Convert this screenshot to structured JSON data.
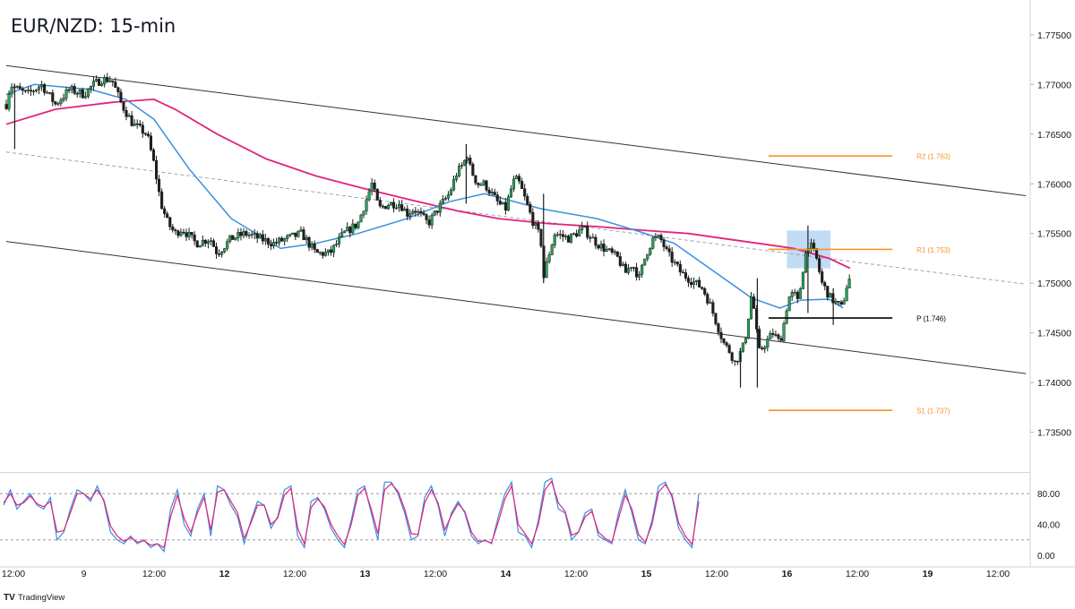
{
  "chart_data": {
    "type": "candlestick",
    "title": "EUR/NZD: 15-min",
    "brand": "TradingView",
    "price_axis": {
      "range": [
        1.731,
        1.7785
      ],
      "ticks": [
        1.775,
        1.77,
        1.765,
        1.76,
        1.755,
        1.75,
        1.745,
        1.74,
        1.735
      ],
      "tick_labels": [
        "1.77500",
        "1.77000",
        "1.76500",
        "1.76000",
        "1.75500",
        "1.75000",
        "1.74500",
        "1.74000",
        "1.73500"
      ]
    },
    "time_axis": {
      "labels": [
        "12:00",
        "9",
        "12:00",
        "12",
        "12:00",
        "13",
        "12:00",
        "14",
        "12:00",
        "15",
        "12:00",
        "16",
        "12:00",
        "19",
        "12:00"
      ],
      "bold_labels": [
        "12",
        "13",
        "14",
        "15",
        "16",
        "19"
      ]
    },
    "pivot_levels": [
      {
        "label": "R2 (1.763)",
        "value": 1.7628,
        "color": "#f5952a",
        "start_t": 5.42,
        "end_t": 6.3
      },
      {
        "label": "R1 (1.753)",
        "value": 1.7534,
        "color": "#f5952a",
        "start_t": 5.42,
        "end_t": 6.3
      },
      {
        "label": "P (1.746)",
        "value": 1.7465,
        "color": "#000000",
        "start_t": 5.42,
        "end_t": 6.3
      },
      {
        "label": "S1 (1.737)",
        "value": 1.7372,
        "color": "#f5952a",
        "start_t": 5.42,
        "end_t": 6.3
      }
    ],
    "trendlines": [
      {
        "name": "upper-channel",
        "points": [
          [
            0,
            1.7719
          ],
          [
            7.25,
            1.7588
          ]
        ],
        "color": "#333333",
        "style": "solid"
      },
      {
        "name": "lower-channel",
        "points": [
          [
            0,
            1.7542
          ],
          [
            7.25,
            1.7409
          ]
        ],
        "color": "#333333",
        "style": "solid"
      },
      {
        "name": "mid-channel",
        "points": [
          [
            0,
            1.7632
          ],
          [
            7.25,
            1.7499
          ]
        ],
        "color": "#9a9a9a",
        "style": "dashed"
      }
    ],
    "highlight_zone": {
      "t_range": [
        5.55,
        5.86
      ],
      "price_range": [
        1.7515,
        1.7553
      ],
      "color": "#90c0ee"
    },
    "close_path": [
      [
        0.0,
        1.768
      ],
      [
        0.03,
        1.77
      ],
      [
        0.08,
        1.7695
      ],
      [
        0.15,
        1.769
      ],
      [
        0.25,
        1.77
      ],
      [
        0.35,
        1.768
      ],
      [
        0.45,
        1.7695
      ],
      [
        0.55,
        1.769
      ],
      [
        0.62,
        1.77
      ],
      [
        0.68,
        1.7705
      ],
      [
        0.75,
        1.7705
      ],
      [
        0.82,
        1.768
      ],
      [
        0.9,
        1.766
      ],
      [
        1.0,
        1.765
      ],
      [
        1.05,
        1.762
      ],
      [
        1.1,
        1.758
      ],
      [
        1.15,
        1.756
      ],
      [
        1.2,
        1.755
      ],
      [
        1.25,
        1.7555
      ],
      [
        1.35,
        1.754
      ],
      [
        1.45,
        1.7545
      ],
      [
        1.5,
        1.753
      ],
      [
        1.6,
        1.7545
      ],
      [
        1.7,
        1.755
      ],
      [
        1.8,
        1.7545
      ],
      [
        1.9,
        1.754
      ],
      [
        2.0,
        1.7545
      ],
      [
        2.1,
        1.755
      ],
      [
        2.2,
        1.753
      ],
      [
        2.3,
        1.753
      ],
      [
        2.4,
        1.755
      ],
      [
        2.5,
        1.756
      ],
      [
        2.6,
        1.76
      ],
      [
        2.65,
        1.7575
      ],
      [
        2.72,
        1.758
      ],
      [
        2.8,
        1.758
      ],
      [
        2.85,
        1.757
      ],
      [
        2.9,
        1.7575
      ],
      [
        3.0,
        1.756
      ],
      [
        3.07,
        1.7575
      ],
      [
        3.15,
        1.759
      ],
      [
        3.2,
        1.761
      ],
      [
        3.25,
        1.762
      ],
      [
        3.28,
        1.763
      ],
      [
        3.3,
        1.7615
      ],
      [
        3.35,
        1.76
      ],
      [
        3.4,
        1.76
      ],
      [
        3.45,
        1.759
      ],
      [
        3.5,
        1.758
      ],
      [
        3.55,
        1.7575
      ],
      [
        3.6,
        1.76
      ],
      [
        3.62,
        1.7605
      ],
      [
        3.65,
        1.76
      ],
      [
        3.7,
        1.758
      ],
      [
        3.75,
        1.756
      ],
      [
        3.8,
        1.7545
      ],
      [
        3.82,
        1.7505
      ],
      [
        3.85,
        1.7525
      ],
      [
        3.9,
        1.755
      ],
      [
        4.0,
        1.7545
      ],
      [
        4.1,
        1.7555
      ],
      [
        4.2,
        1.754
      ],
      [
        4.25,
        1.7535
      ],
      [
        4.35,
        1.7525
      ],
      [
        4.4,
        1.751
      ],
      [
        4.45,
        1.752
      ],
      [
        4.5,
        1.7505
      ],
      [
        4.55,
        1.753
      ],
      [
        4.6,
        1.7545
      ],
      [
        4.65,
        1.7545
      ],
      [
        4.7,
        1.753
      ],
      [
        4.75,
        1.752
      ],
      [
        4.8,
        1.751
      ],
      [
        4.85,
        1.7505
      ],
      [
        4.9,
        1.75
      ],
      [
        4.95,
        1.7495
      ],
      [
        5.0,
        1.748
      ],
      [
        5.05,
        1.746
      ],
      [
        5.1,
        1.744
      ],
      [
        5.15,
        1.743
      ],
      [
        5.18,
        1.742
      ],
      [
        5.22,
        1.743
      ],
      [
        5.25,
        1.744
      ],
      [
        5.3,
        1.749
      ],
      [
        5.32,
        1.747
      ],
      [
        5.35,
        1.743
      ],
      [
        5.4,
        1.744
      ],
      [
        5.45,
        1.745
      ],
      [
        5.5,
        1.744
      ],
      [
        5.53,
        1.746
      ],
      [
        5.56,
        1.7485
      ],
      [
        5.6,
        1.749
      ],
      [
        5.63,
        1.748
      ],
      [
        5.67,
        1.752
      ],
      [
        5.7,
        1.754
      ],
      [
        5.73,
        1.7535
      ],
      [
        5.76,
        1.7525
      ],
      [
        5.8,
        1.75
      ],
      [
        5.84,
        1.749
      ],
      [
        5.86,
        1.7485
      ],
      [
        5.9,
        1.748
      ],
      [
        5.94,
        1.7475
      ],
      [
        5.98,
        1.75
      ],
      [
        6.0,
        1.7505
      ]
    ],
    "spikes": [
      [
        0.06,
        1.77,
        1.7635
      ],
      [
        3.27,
        1.764,
        1.758
      ],
      [
        3.82,
        1.759,
        1.75
      ],
      [
        5.22,
        1.7435,
        1.7395
      ],
      [
        5.34,
        1.7505,
        1.7395
      ],
      [
        5.7,
        1.7558,
        1.747
      ],
      [
        5.88,
        1.7495,
        1.7458
      ]
    ],
    "ma_fast": {
      "name": "moving average",
      "color": "#3a8fde",
      "points": [
        [
          0,
          1.769
        ],
        [
          0.2,
          1.77
        ],
        [
          0.6,
          1.7695
        ],
        [
          0.85,
          1.7685
        ],
        [
          1.05,
          1.7665
        ],
        [
          1.3,
          1.7615
        ],
        [
          1.6,
          1.7565
        ],
        [
          1.95,
          1.7535
        ],
        [
          2.2,
          1.754
        ],
        [
          2.5,
          1.755
        ],
        [
          2.85,
          1.7565
        ],
        [
          3.15,
          1.7582
        ],
        [
          3.4,
          1.759
        ],
        [
          3.8,
          1.7575
        ],
        [
          4.2,
          1.7565
        ],
        [
          4.5,
          1.7552
        ],
        [
          4.75,
          1.754
        ],
        [
          5.05,
          1.751
        ],
        [
          5.3,
          1.7485
        ],
        [
          5.5,
          1.7475
        ],
        [
          5.65,
          1.7483
        ],
        [
          5.85,
          1.7484
        ],
        [
          5.95,
          1.7475
        ]
      ]
    },
    "ma_slow": {
      "name": "moving average",
      "color": "#e0247a",
      "points": [
        [
          0,
          1.766
        ],
        [
          0.35,
          1.7675
        ],
        [
          0.75,
          1.7682
        ],
        [
          1.05,
          1.7685
        ],
        [
          1.2,
          1.7675
        ],
        [
          1.5,
          1.765
        ],
        [
          1.85,
          1.7625
        ],
        [
          2.2,
          1.7608
        ],
        [
          2.55,
          1.7595
        ],
        [
          2.9,
          1.7583
        ],
        [
          3.2,
          1.7573
        ],
        [
          3.5,
          1.7565
        ],
        [
          3.85,
          1.756
        ],
        [
          4.2,
          1.7557
        ],
        [
          4.55,
          1.7553
        ],
        [
          4.85,
          1.755
        ],
        [
          5.1,
          1.7545
        ],
        [
          5.35,
          1.754
        ],
        [
          5.6,
          1.7535
        ],
        [
          5.85,
          1.7525
        ],
        [
          6.0,
          1.7515
        ]
      ]
    },
    "oscillator": {
      "range": [
        0,
        100
      ],
      "ticks": [
        80,
        40,
        0
      ],
      "tick_labels": [
        "80.00",
        "40.00",
        "0.00"
      ],
      "levels": [
        80,
        20
      ],
      "series": [
        {
          "name": "%K",
          "color": "#3a8fde",
          "values": [
            65,
            85,
            60,
            70,
            80,
            65,
            60,
            75,
            20,
            30,
            60,
            85,
            80,
            70,
            90,
            70,
            30,
            20,
            15,
            25,
            15,
            20,
            10,
            15,
            5,
            60,
            85,
            40,
            25,
            60,
            80,
            25,
            90,
            85,
            65,
            50,
            15,
            45,
            70,
            65,
            35,
            50,
            85,
            90,
            25,
            10,
            70,
            75,
            60,
            35,
            20,
            10,
            45,
            85,
            90,
            55,
            20,
            95,
            95,
            80,
            55,
            20,
            25,
            75,
            90,
            65,
            25,
            55,
            70,
            55,
            25,
            15,
            20,
            15,
            50,
            80,
            95,
            30,
            25,
            10,
            45,
            95,
            100,
            60,
            55,
            20,
            30,
            55,
            60,
            25,
            20,
            15,
            55,
            85,
            55,
            20,
            15,
            45,
            90,
            95,
            75,
            35,
            20,
            10,
            80
          ]
        },
        {
          "name": "%D",
          "color": "#e0247a",
          "values": [
            68,
            80,
            65,
            68,
            77,
            67,
            63,
            70,
            30,
            32,
            55,
            80,
            80,
            73,
            85,
            72,
            38,
            25,
            18,
            23,
            17,
            19,
            13,
            15,
            10,
            50,
            78,
            48,
            30,
            55,
            75,
            33,
            82,
            85,
            70,
            55,
            22,
            42,
            65,
            65,
            40,
            48,
            78,
            87,
            35,
            15,
            62,
            73,
            63,
            40,
            25,
            14,
            40,
            78,
            87,
            60,
            28,
            85,
            93,
            83,
            60,
            28,
            27,
            68,
            85,
            68,
            33,
            52,
            67,
            57,
            30,
            18,
            19,
            16,
            43,
            73,
            90,
            40,
            28,
            15,
            40,
            85,
            96,
            68,
            57,
            26,
            30,
            50,
            57,
            30,
            22,
            17,
            48,
            78,
            60,
            27,
            17,
            40,
            82,
            92,
            78,
            42,
            25,
            14,
            70
          ]
        }
      ]
    }
  }
}
